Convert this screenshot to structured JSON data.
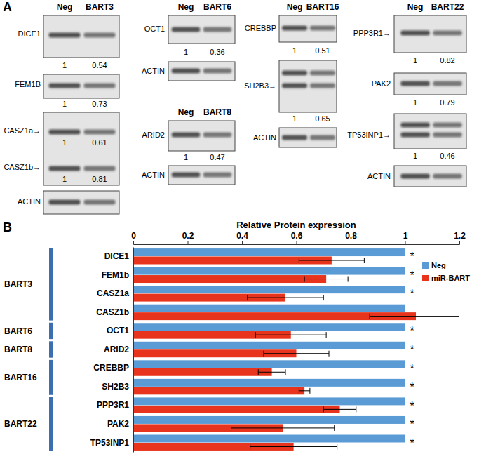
{
  "panel_a": {
    "label": "A",
    "blots": [
      {
        "columns": [
          "Neg",
          "BART3"
        ],
        "proteins": [
          {
            "name": "DICE1",
            "values": [
              1,
              0.54
            ]
          },
          {
            "name": "FEM1B",
            "values": [
              1,
              0.73
            ]
          },
          {
            "name": "CASZ1a→",
            "values": [
              1,
              0.61
            ]
          },
          {
            "name": "CASZ1b→",
            "values": [
              1,
              0.81
            ]
          },
          {
            "name": "ACTIN"
          }
        ]
      },
      {
        "columns": [
          "Neg",
          "BART6"
        ],
        "proteins": [
          {
            "name": "OCT1",
            "values": [
              1,
              0.36
            ]
          },
          {
            "name": "ACTIN"
          }
        ]
      },
      {
        "columns": [
          "Neg",
          "BART8"
        ],
        "proteins": [
          {
            "name": "ARID2",
            "values": [
              1,
              0.47
            ]
          },
          {
            "name": "ACTIN"
          }
        ]
      },
      {
        "columns": [
          "Neg",
          "BART16"
        ],
        "proteins": [
          {
            "name": "CREBBP",
            "values": [
              1,
              0.51
            ]
          },
          {
            "name": "SH2B3→",
            "values": [
              1,
              0.65
            ]
          },
          {
            "name": "ACTIN"
          }
        ]
      },
      {
        "columns": [
          "Neg",
          "BART22"
        ],
        "proteins": [
          {
            "name": "PPP3R1→",
            "values": [
              1,
              0.82
            ]
          },
          {
            "name": "PAK2",
            "values": [
              1,
              0.79
            ]
          },
          {
            "name": "TP53INP1→",
            "values": [
              1,
              0.46
            ]
          },
          {
            "name": "ACTIN"
          }
        ]
      }
    ]
  },
  "chart_data": {
    "type": "bar",
    "panel_label": "B",
    "orientation": "horizontal",
    "x_label": "Relative Protein expression",
    "categories": [
      "DICE1",
      "FEM1b",
      "CASZ1a",
      "CASZ1b",
      "OCT1",
      "ARID2",
      "CREBBP",
      "SH2B3",
      "PPP3R1",
      "PAK2",
      "TP53INP1"
    ],
    "groups": [
      {
        "label": "BART3",
        "categories": [
          "DICE1",
          "FEM1b",
          "CASZ1a",
          "CASZ1b"
        ]
      },
      {
        "label": "BART6",
        "categories": [
          "OCT1"
        ]
      },
      {
        "label": "BART8",
        "categories": [
          "ARID2"
        ]
      },
      {
        "label": "BART16",
        "categories": [
          "CREBBP",
          "SH2B3"
        ]
      },
      {
        "label": "BART22",
        "categories": [
          "PPP3R1",
          "PAK2",
          "TP53INP1"
        ]
      }
    ],
    "series": [
      {
        "name": "Neg",
        "color": "#5b9bd5",
        "values": [
          1,
          1,
          1,
          1,
          1,
          1,
          1,
          1,
          1,
          1,
          1
        ]
      },
      {
        "name": "miR-BART",
        "color": "#e8341c",
        "values": [
          0.73,
          0.71,
          0.56,
          1.04,
          0.58,
          0.6,
          0.51,
          0.63,
          0.76,
          0.55,
          0.59
        ],
        "errors": [
          0.12,
          0.08,
          0.14,
          0.17,
          0.13,
          0.12,
          0.05,
          0.02,
          0.06,
          0.19,
          0.16
        ]
      }
    ],
    "significance": [
      "*",
      "*",
      "*",
      null,
      "*",
      "*",
      "*",
      "*",
      "*",
      "*",
      "*"
    ],
    "xlim": [
      0,
      1.2
    ],
    "xticks": [
      0,
      0.2,
      0.4,
      0.6,
      0.8,
      1,
      1.2
    ],
    "grid": false,
    "legend": "right"
  }
}
